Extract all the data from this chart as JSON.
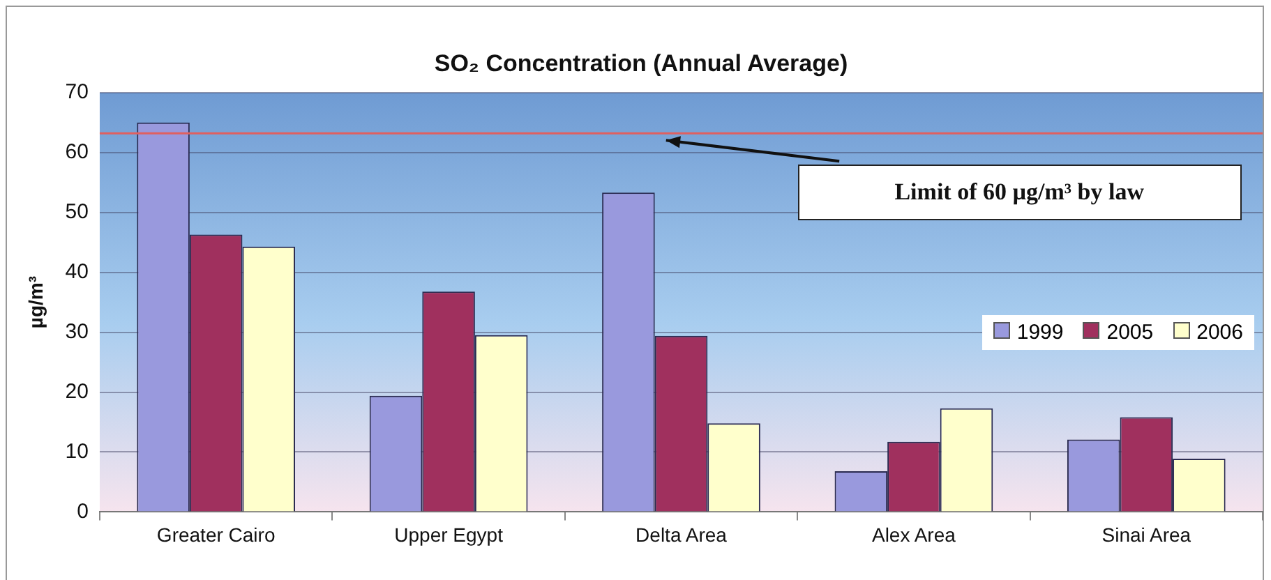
{
  "chart_data": {
    "type": "bar",
    "title": "SO₂ Concentration (Annual Average)",
    "ylabel": "µg/m³",
    "categories": [
      "Greater Cairo",
      "Upper Egypt",
      "Delta Area",
      "Alex Area",
      "Sinai Area"
    ],
    "series": [
      {
        "name": "1999",
        "color": "#9999dd",
        "values": [
          65,
          19.4,
          53.3,
          6.8,
          12.1
        ]
      },
      {
        "name": "2005",
        "color": "#a0305e",
        "values": [
          46.3,
          36.8,
          29.4,
          11.7,
          15.8
        ]
      },
      {
        "name": "2006",
        "color": "#ffffcc",
        "values": [
          44.3,
          29.5,
          14.8,
          17.3,
          8.9
        ]
      }
    ],
    "ylim": [
      0,
      70
    ],
    "yticks": [
      0,
      10,
      20,
      30,
      40,
      50,
      60,
      70
    ],
    "grid": "y",
    "legend": "right",
    "ref_lines": [
      {
        "axis": "y",
        "value": 63.2,
        "label": "Limit of 60 µg/m³ by law",
        "color": "#e06060"
      }
    ]
  }
}
